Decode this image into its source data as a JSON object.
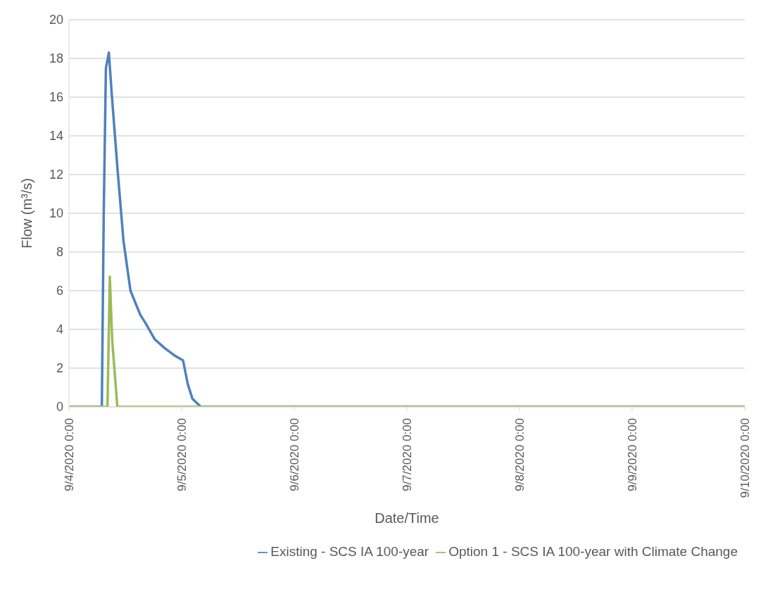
{
  "chart_data": {
    "type": "line",
    "xlabel": "Date/Time",
    "ylabel": "Flow (m³/s)",
    "xlim": [
      "2020-09-04T00:00",
      "2020-09-10T00:00"
    ],
    "xticks": [
      {
        "value": "2020-09-04T00:00",
        "label": "9/4/2020 0:00"
      },
      {
        "value": "2020-09-05T00:00",
        "label": "9/5/2020 0:00"
      },
      {
        "value": "2020-09-06T00:00",
        "label": "9/6/2020 0:00"
      },
      {
        "value": "2020-09-07T00:00",
        "label": "9/7/2020 0:00"
      },
      {
        "value": "2020-09-08T00:00",
        "label": "9/8/2020 0:00"
      },
      {
        "value": "2020-09-09T00:00",
        "label": "9/9/2020 0:00"
      },
      {
        "value": "2020-09-10T00:00",
        "label": "9/10/2020 0:00"
      }
    ],
    "ylim": [
      0,
      20
    ],
    "yticks": [
      0,
      2,
      4,
      6,
      8,
      10,
      12,
      14,
      16,
      18,
      20
    ],
    "grid": "y",
    "legend": "bottom",
    "line_style": "solid",
    "series": [
      {
        "name": "Existing - SCS IA 100-year",
        "color": "#4f81bd",
        "x": [
          "2020-09-04T00:00",
          "2020-09-04T07:00",
          "2020-09-04T07:24",
          "2020-09-04T07:52",
          "2020-09-04T08:30",
          "2020-09-04T09:06",
          "2020-09-04T10:18",
          "2020-09-04T11:36",
          "2020-09-04T13:06",
          "2020-09-04T15:12",
          "2020-09-04T16:12",
          "2020-09-04T18:18",
          "2020-09-04T20:24",
          "2020-09-04T22:30",
          "2020-09-05T00:18",
          "2020-09-05T01:18",
          "2020-09-05T02:18",
          "2020-09-05T04:06",
          "2020-09-10T00:00"
        ],
        "values": [
          0,
          0,
          9.9,
          17.5,
          18.3,
          16.2,
          12.4,
          8.6,
          6.0,
          4.75,
          4.37,
          3.48,
          3.03,
          2.65,
          2.4,
          1.19,
          0.42,
          0,
          0
        ]
      },
      {
        "name": "Option 1 - SCS IA 100-year with Climate Change",
        "color": "#9bbb59",
        "x": [
          "2020-09-04T00:00",
          "2020-09-04T08:12",
          "2020-09-04T08:42",
          "2020-09-04T09:12",
          "2020-09-04T10:18",
          "2020-09-10T00:00"
        ],
        "values": [
          0,
          0,
          6.73,
          3.48,
          0,
          0
        ]
      }
    ]
  }
}
